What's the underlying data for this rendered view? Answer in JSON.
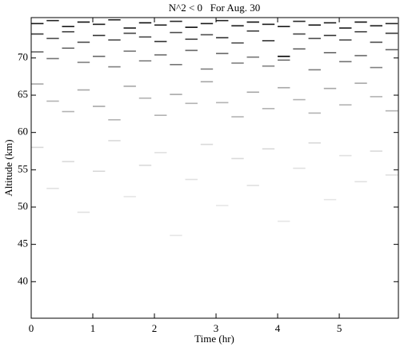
{
  "chart_data": {
    "type": "dash-map",
    "title": "N^2 < 0   For Aug. 30",
    "xlabel": "Time (hr)",
    "ylabel": "Altitude (km)",
    "xlim": [
      0,
      5.96
    ],
    "ylim": [
      35.1,
      75.4
    ],
    "xticks": [
      0,
      1,
      2,
      3,
      4,
      5
    ],
    "yticks": [
      40,
      45,
      50,
      55,
      60,
      65,
      70
    ],
    "mark_width": 0.2,
    "color": "#000000",
    "x": [
      0,
      0,
      0,
      0,
      0,
      0.25,
      0.25,
      0.25,
      0.25,
      0.25,
      0.5,
      0.5,
      0.5,
      0.5,
      0.5,
      0.75,
      0.75,
      0.75,
      0.75,
      0.75,
      1,
      1,
      1,
      1,
      1,
      1.25,
      1.25,
      1.25,
      1.25,
      1.25,
      1.5,
      1.5,
      1.5,
      1.5,
      1.5,
      1.75,
      1.75,
      1.75,
      1.75,
      1.75,
      2,
      2,
      2,
      2,
      2,
      2.25,
      2.25,
      2.25,
      2.25,
      2.25,
      2.5,
      2.5,
      2.5,
      2.5,
      2.5,
      2.75,
      2.75,
      2.75,
      2.75,
      2.75,
      3,
      3,
      3,
      3,
      3,
      3.25,
      3.25,
      3.25,
      3.25,
      3.25,
      3.5,
      3.5,
      3.5,
      3.5,
      3.5,
      3.75,
      3.75,
      3.75,
      3.75,
      3.75,
      4,
      4,
      4,
      4,
      4,
      4.25,
      4.25,
      4.25,
      4.25,
      4.25,
      4.5,
      4.5,
      4.5,
      4.5,
      4.5,
      4.75,
      4.75,
      4.75,
      4.75,
      4.75,
      5,
      5,
      5,
      5,
      5,
      5.25,
      5.25,
      5.25,
      5.25,
      5.25,
      5.5,
      5.5,
      5.5,
      5.5,
      5.5,
      5.75,
      5.75,
      5.75,
      5.75,
      5.75
    ],
    "y": [
      74.6,
      73.2,
      70.8,
      66.5,
      58.0,
      75.0,
      72.6,
      69.9,
      64.2,
      52.5,
      74.2,
      73.5,
      71.3,
      62.8,
      56.1,
      74.8,
      72.1,
      69.4,
      65.7,
      49.3,
      74.5,
      73.0,
      70.2,
      63.5,
      54.8,
      75.1,
      72.4,
      68.8,
      61.7,
      58.9,
      74.0,
      73.3,
      70.9,
      66.2,
      51.4,
      74.7,
      72.8,
      69.6,
      64.6,
      55.6,
      74.4,
      72.2,
      70.4,
      62.3,
      57.3,
      74.9,
      73.4,
      69.1,
      65.1,
      46.2,
      74.1,
      72.5,
      71.0,
      63.9,
      53.7,
      74.6,
      73.1,
      68.5,
      66.8,
      58.4,
      75.0,
      72.7,
      70.6,
      64.0,
      50.2,
      74.3,
      72.0,
      69.3,
      62.1,
      56.5,
      74.8,
      73.6,
      70.1,
      65.4,
      52.9,
      74.5,
      72.3,
      68.9,
      63.2,
      57.8,
      74.2,
      70.2,
      69.7,
      66.0,
      48.1,
      74.9,
      73.2,
      71.2,
      64.4,
      55.2,
      74.4,
      72.6,
      68.4,
      62.6,
      58.6,
      74.7,
      73.0,
      70.7,
      65.9,
      51.0,
      74.0,
      72.4,
      69.5,
      63.7,
      56.9,
      74.8,
      73.5,
      70.3,
      66.6,
      53.4,
      74.3,
      72.1,
      68.7,
      64.8,
      57.5,
      74.6,
      73.3,
      71.1,
      62.9,
      54.3
    ],
    "values": [
      0.9,
      0.8,
      0.6,
      0.35,
      0.15,
      0.85,
      0.7,
      0.55,
      0.3,
      0.12,
      0.9,
      0.75,
      0.6,
      0.3,
      0.15,
      0.95,
      0.7,
      0.5,
      0.35,
      0.12,
      0.9,
      0.8,
      0.6,
      0.35,
      0.15,
      0.85,
      0.7,
      0.5,
      0.3,
      0.15,
      0.9,
      0.75,
      0.55,
      0.35,
      0.1,
      0.95,
      0.7,
      0.5,
      0.3,
      0.15,
      0.9,
      0.8,
      0.6,
      0.3,
      0.12,
      0.85,
      0.7,
      0.55,
      0.35,
      0.1,
      0.95,
      0.75,
      0.6,
      0.3,
      0.12,
      0.9,
      0.7,
      0.5,
      0.35,
      0.15,
      0.85,
      0.8,
      0.6,
      0.3,
      0.1,
      0.9,
      0.7,
      0.5,
      0.3,
      0.15,
      0.95,
      0.75,
      0.55,
      0.35,
      0.12,
      0.9,
      0.8,
      0.5,
      0.3,
      0.15,
      0.9,
      1.0,
      0.55,
      0.35,
      0.1,
      0.85,
      0.75,
      0.6,
      0.3,
      0.12,
      0.95,
      0.7,
      0.5,
      0.3,
      0.15,
      0.9,
      0.8,
      0.6,
      0.35,
      0.1,
      0.9,
      0.7,
      0.55,
      0.3,
      0.12,
      0.95,
      0.75,
      0.6,
      0.35,
      0.12,
      0.9,
      0.7,
      0.5,
      0.3,
      0.15,
      0.85,
      0.8,
      0.6,
      0.3,
      0.12
    ]
  }
}
